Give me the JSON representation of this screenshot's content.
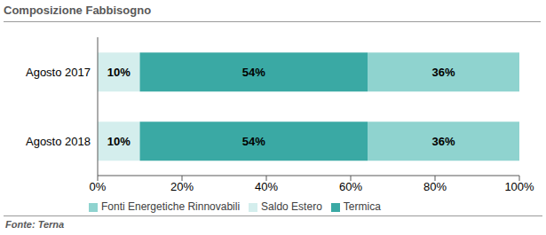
{
  "chart_data": {
    "type": "bar",
    "title": "Composizione Fabbisogno",
    "source": "Fonte: Terna",
    "orientation": "horizontal",
    "stacked": true,
    "data_labels": true,
    "grid": false,
    "legend": "bottom",
    "categories": [
      "Agosto 2017",
      "Agosto 2018"
    ],
    "xlim": [
      0,
      100
    ],
    "xticks": [
      {
        "value": 0,
        "label": "0%"
      },
      {
        "value": 20,
        "label": "20%"
      },
      {
        "value": 40,
        "label": "40%"
      },
      {
        "value": 60,
        "label": "60%"
      },
      {
        "value": 80,
        "label": "80%"
      },
      {
        "value": 100,
        "label": "100%"
      }
    ],
    "series": [
      {
        "name": "Saldo Estero",
        "color": "#d4eeed",
        "values": [
          10,
          10
        ],
        "value_labels": [
          "10%",
          "10%"
        ]
      },
      {
        "name": "Termica",
        "color": "#3aa9a4",
        "values": [
          54,
          54
        ],
        "value_labels": [
          "54%",
          "54%"
        ]
      },
      {
        "name": "Fonti Energetiche Rinnovabili",
        "color": "#8fd3cf",
        "values": [
          36,
          36
        ],
        "value_labels": [
          "36%",
          "36%"
        ]
      }
    ]
  }
}
